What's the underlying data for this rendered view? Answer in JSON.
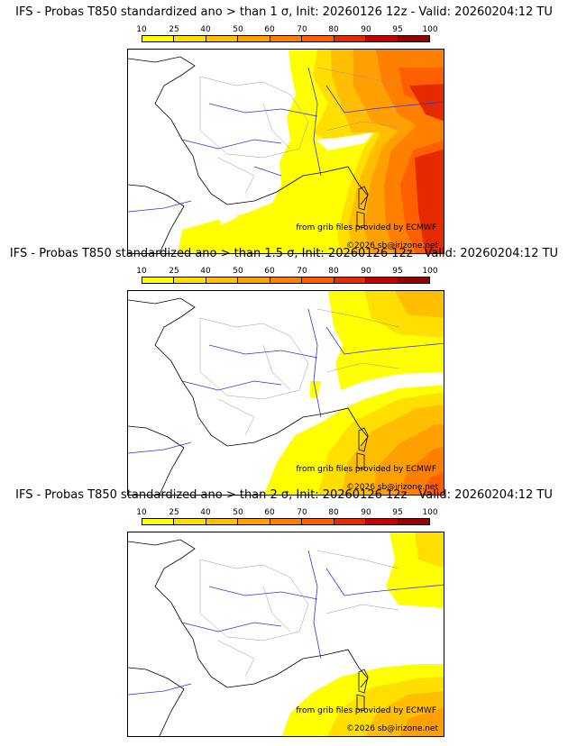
{
  "colors": {
    "bins": [
      "#ffff00",
      "#ffdf00",
      "#ffbf00",
      "#ff9f00",
      "#ff7f00",
      "#ff5f00",
      "#e62a00",
      "#c80000",
      "#960000",
      "#640000"
    ],
    "coast": "#000000",
    "rivers": "#3333cc",
    "borders": "#999999"
  },
  "legend": {
    "ticks": [
      "10",
      "25",
      "40",
      "50",
      "60",
      "70",
      "80",
      "90",
      "95",
      "100"
    ]
  },
  "panels": [
    {
      "title": "IFS - Probas T850  standardized ano > than 1 σ, Init: 20260126 12z - Valid: 20260204:12 TU",
      "credit_source": "from grib files provided by ECMWF",
      "credit_copyright": "©2026 sb@irizone.net",
      "threshold_sigma": 1
    },
    {
      "title": "IFS - Probas T850  standardized ano > than 1.5 σ, Init: 20260126 12z - Valid: 20260204:12 TU",
      "credit_source": "from grib files provided by ECMWF",
      "credit_copyright": "©2026 sb@irizone.net",
      "threshold_sigma": 1.5
    },
    {
      "title": "IFS - Probas T850  standardized ano > than 2 σ, Init: 20260126 12z - Valid: 20260204:12 TU",
      "credit_source": "from grib files provided by ECMWF",
      "credit_copyright": "©2026 sb@irizone.net",
      "threshold_sigma": 2
    }
  ]
}
